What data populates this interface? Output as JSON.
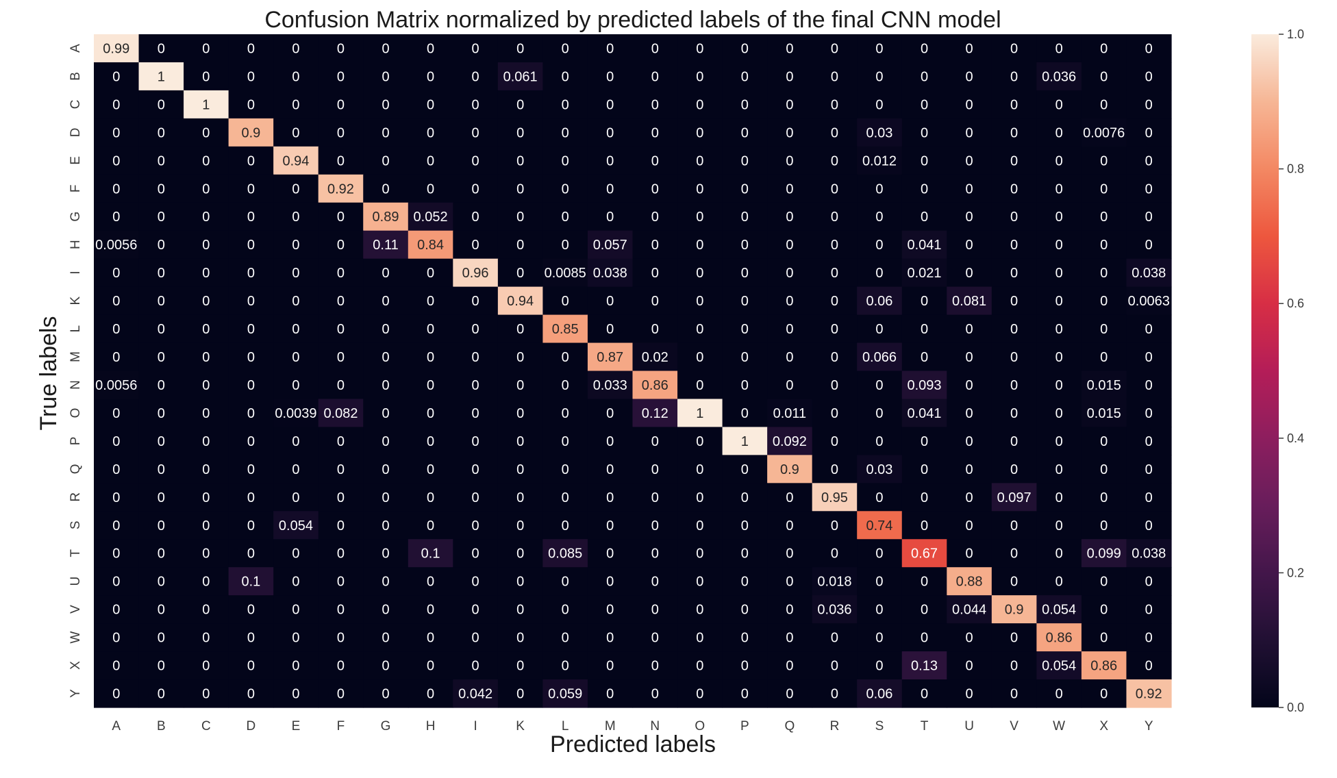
{
  "chart_data": {
    "type": "heatmap",
    "title": "Confusion Matrix normalized by predicted labels of the final CNN model",
    "xlabel": "Predicted labels",
    "ylabel": "True labels",
    "x_categories": [
      "A",
      "B",
      "C",
      "D",
      "E",
      "F",
      "G",
      "H",
      "I",
      "K",
      "L",
      "M",
      "N",
      "O",
      "P",
      "Q",
      "R",
      "S",
      "T",
      "U",
      "V",
      "W",
      "X",
      "Y"
    ],
    "y_categories": [
      "A",
      "B",
      "C",
      "D",
      "E",
      "F",
      "G",
      "H",
      "I",
      "K",
      "L",
      "M",
      "N",
      "O",
      "P",
      "Q",
      "R",
      "S",
      "T",
      "U",
      "V",
      "W",
      "X",
      "Y"
    ],
    "values": [
      [
        "0.99",
        "0",
        "0",
        "0",
        "0",
        "0",
        "0",
        "0",
        "0",
        "0",
        "0",
        "0",
        "0",
        "0",
        "0",
        "0",
        "0",
        "0",
        "0",
        "0",
        "0",
        "0",
        "0",
        "0"
      ],
      [
        "0",
        "1",
        "0",
        "0",
        "0",
        "0",
        "0",
        "0",
        "0",
        "0.061",
        "0",
        "0",
        "0",
        "0",
        "0",
        "0",
        "0",
        "0",
        "0",
        "0",
        "0",
        "0.036",
        "0",
        "0"
      ],
      [
        "0",
        "0",
        "1",
        "0",
        "0",
        "0",
        "0",
        "0",
        "0",
        "0",
        "0",
        "0",
        "0",
        "0",
        "0",
        "0",
        "0",
        "0",
        "0",
        "0",
        "0",
        "0",
        "0",
        "0"
      ],
      [
        "0",
        "0",
        "0",
        "0.9",
        "0",
        "0",
        "0",
        "0",
        "0",
        "0",
        "0",
        "0",
        "0",
        "0",
        "0",
        "0",
        "0",
        "0.03",
        "0",
        "0",
        "0",
        "0",
        "0.0076",
        "0"
      ],
      [
        "0",
        "0",
        "0",
        "0",
        "0.94",
        "0",
        "0",
        "0",
        "0",
        "0",
        "0",
        "0",
        "0",
        "0",
        "0",
        "0",
        "0",
        "0.012",
        "0",
        "0",
        "0",
        "0",
        "0",
        "0"
      ],
      [
        "0",
        "0",
        "0",
        "0",
        "0",
        "0.92",
        "0",
        "0",
        "0",
        "0",
        "0",
        "0",
        "0",
        "0",
        "0",
        "0",
        "0",
        "0",
        "0",
        "0",
        "0",
        "0",
        "0",
        "0"
      ],
      [
        "0",
        "0",
        "0",
        "0",
        "0",
        "0",
        "0.89",
        "0.052",
        "0",
        "0",
        "0",
        "0",
        "0",
        "0",
        "0",
        "0",
        "0",
        "0",
        "0",
        "0",
        "0",
        "0",
        "0",
        "0"
      ],
      [
        "0.0056",
        "0",
        "0",
        "0",
        "0",
        "0",
        "0.11",
        "0.84",
        "0",
        "0",
        "0",
        "0.057",
        "0",
        "0",
        "0",
        "0",
        "0",
        "0",
        "0.041",
        "0",
        "0",
        "0",
        "0",
        "0"
      ],
      [
        "0",
        "0",
        "0",
        "0",
        "0",
        "0",
        "0",
        "0",
        "0.96",
        "0",
        "0.0085",
        "0.038",
        "0",
        "0",
        "0",
        "0",
        "0",
        "0",
        "0.021",
        "0",
        "0",
        "0",
        "0",
        "0.038"
      ],
      [
        "0",
        "0",
        "0",
        "0",
        "0",
        "0",
        "0",
        "0",
        "0",
        "0.94",
        "0",
        "0",
        "0",
        "0",
        "0",
        "0",
        "0",
        "0.06",
        "0",
        "0.081",
        "0",
        "0",
        "0",
        "0.0063"
      ],
      [
        "0",
        "0",
        "0",
        "0",
        "0",
        "0",
        "0",
        "0",
        "0",
        "0",
        "0.85",
        "0",
        "0",
        "0",
        "0",
        "0",
        "0",
        "0",
        "0",
        "0",
        "0",
        "0",
        "0",
        "0"
      ],
      [
        "0",
        "0",
        "0",
        "0",
        "0",
        "0",
        "0",
        "0",
        "0",
        "0",
        "0",
        "0.87",
        "0.02",
        "0",
        "0",
        "0",
        "0",
        "0.066",
        "0",
        "0",
        "0",
        "0",
        "0",
        "0"
      ],
      [
        "0.0056",
        "0",
        "0",
        "0",
        "0",
        "0",
        "0",
        "0",
        "0",
        "0",
        "0",
        "0.033",
        "0.86",
        "0",
        "0",
        "0",
        "0",
        "0",
        "0.093",
        "0",
        "0",
        "0",
        "0.015",
        "0"
      ],
      [
        "0",
        "0",
        "0",
        "0",
        "0.0039",
        "0.082",
        "0",
        "0",
        "0",
        "0",
        "0",
        "0",
        "0.12",
        "1",
        "0",
        "0.011",
        "0",
        "0",
        "0.041",
        "0",
        "0",
        "0",
        "0.015",
        "0"
      ],
      [
        "0",
        "0",
        "0",
        "0",
        "0",
        "0",
        "0",
        "0",
        "0",
        "0",
        "0",
        "0",
        "0",
        "0",
        "1",
        "0.092",
        "0",
        "0",
        "0",
        "0",
        "0",
        "0",
        "0",
        "0"
      ],
      [
        "0",
        "0",
        "0",
        "0",
        "0",
        "0",
        "0",
        "0",
        "0",
        "0",
        "0",
        "0",
        "0",
        "0",
        "0",
        "0.9",
        "0",
        "0.03",
        "0",
        "0",
        "0",
        "0",
        "0",
        "0"
      ],
      [
        "0",
        "0",
        "0",
        "0",
        "0",
        "0",
        "0",
        "0",
        "0",
        "0",
        "0",
        "0",
        "0",
        "0",
        "0",
        "0",
        "0.95",
        "0",
        "0",
        "0",
        "0.097",
        "0",
        "0",
        "0"
      ],
      [
        "0",
        "0",
        "0",
        "0",
        "0.054",
        "0",
        "0",
        "0",
        "0",
        "0",
        "0",
        "0",
        "0",
        "0",
        "0",
        "0",
        "0",
        "0.74",
        "0",
        "0",
        "0",
        "0",
        "0",
        "0"
      ],
      [
        "0",
        "0",
        "0",
        "0",
        "0",
        "0",
        "0",
        "0.1",
        "0",
        "0",
        "0.085",
        "0",
        "0",
        "0",
        "0",
        "0",
        "0",
        "0",
        "0.67",
        "0",
        "0",
        "0",
        "0.099",
        "0.038"
      ],
      [
        "0",
        "0",
        "0",
        "0.1",
        "0",
        "0",
        "0",
        "0",
        "0",
        "0",
        "0",
        "0",
        "0",
        "0",
        "0",
        "0",
        "0.018",
        "0",
        "0",
        "0.88",
        "0",
        "0",
        "0",
        "0"
      ],
      [
        "0",
        "0",
        "0",
        "0",
        "0",
        "0",
        "0",
        "0",
        "0",
        "0",
        "0",
        "0",
        "0",
        "0",
        "0",
        "0",
        "0.036",
        "0",
        "0",
        "0.044",
        "0.9",
        "0.054",
        "0",
        "0"
      ],
      [
        "0",
        "0",
        "0",
        "0",
        "0",
        "0",
        "0",
        "0",
        "0",
        "0",
        "0",
        "0",
        "0",
        "0",
        "0",
        "0",
        "0",
        "0",
        "0",
        "0",
        "0",
        "0.86",
        "0",
        "0"
      ],
      [
        "0",
        "0",
        "0",
        "0",
        "0",
        "0",
        "0",
        "0",
        "0",
        "0",
        "0",
        "0",
        "0",
        "0",
        "0",
        "0",
        "0",
        "0",
        "0.13",
        "0",
        "0",
        "0.054",
        "0.86",
        "0"
      ],
      [
        "0",
        "0",
        "0",
        "0",
        "0",
        "0",
        "0",
        "0",
        "0.042",
        "0",
        "0.059",
        "0",
        "0",
        "0",
        "0",
        "0",
        "0",
        "0.06",
        "0",
        "0",
        "0",
        "0",
        "0",
        "0.92"
      ]
    ],
    "value_range": [
      0,
      1
    ],
    "colormap": "rocket",
    "colorbar_ticks": [
      "0.0",
      "0.2",
      "0.4",
      "0.6",
      "0.8",
      "1.0"
    ],
    "grid": false
  }
}
